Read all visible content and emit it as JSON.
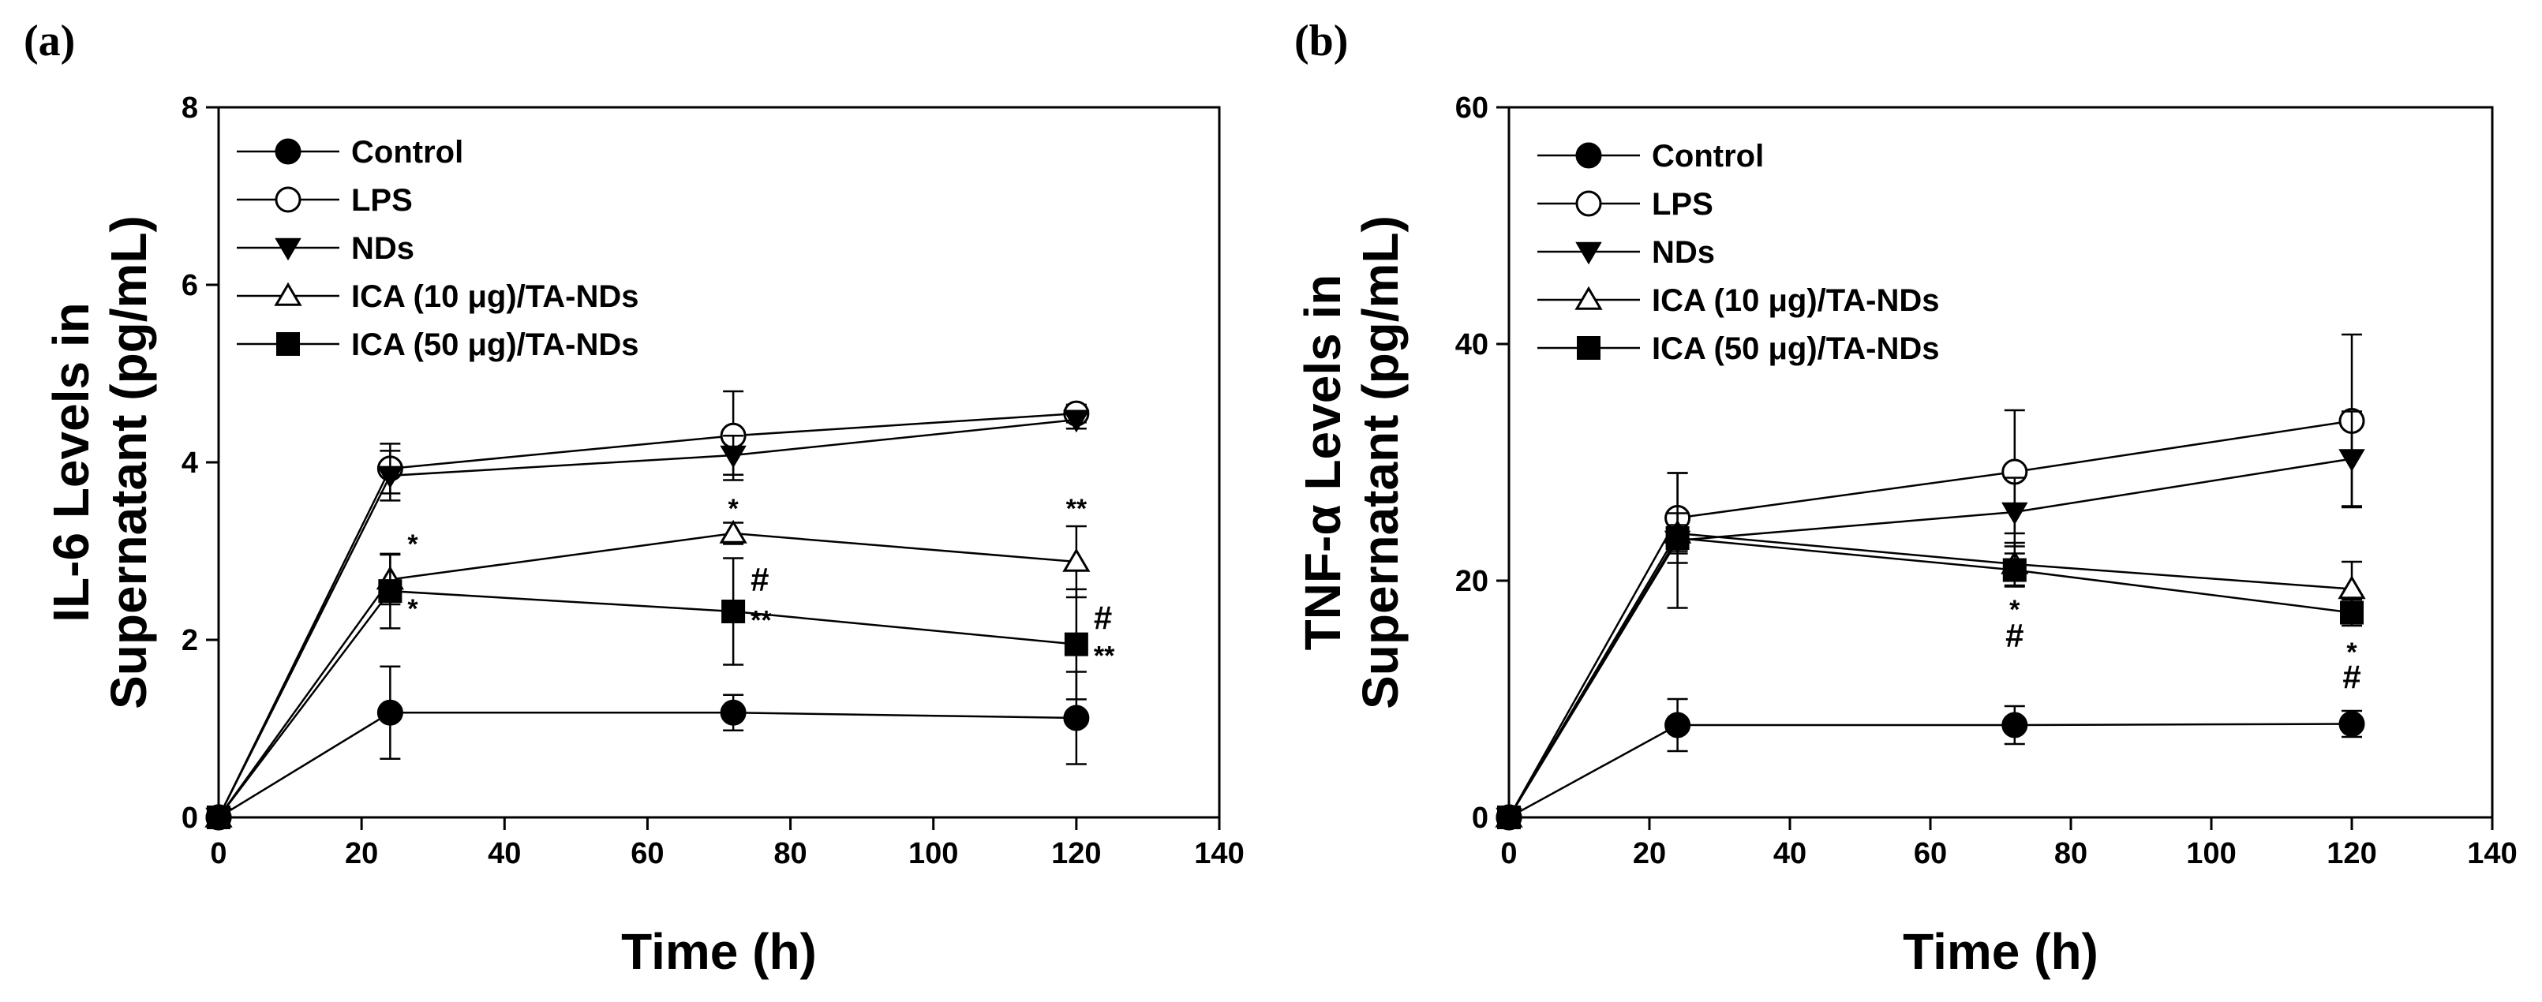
{
  "chart_data": [
    {
      "type": "line",
      "panel_label": "(a)",
      "xlabel": "Time (h)",
      "ylabel_line1": "IL-6 Levels in",
      "ylabel_line2": "Supernatant (pg/mL)",
      "xlim": [
        0,
        140
      ],
      "ylim": [
        0,
        8
      ],
      "xticks": [
        0,
        20,
        40,
        60,
        80,
        100,
        120,
        140
      ],
      "yticks": [
        0,
        2,
        4,
        6,
        8
      ],
      "legend_position": "top-left",
      "series": [
        {
          "name": "Control",
          "marker": "circle-filled",
          "x": [
            0,
            24,
            72,
            120
          ],
          "y": [
            0,
            1.18,
            1.18,
            1.12
          ],
          "err": [
            0,
            0.52,
            0.2,
            0.52
          ]
        },
        {
          "name": "LPS",
          "marker": "circle-open",
          "x": [
            0,
            24,
            72,
            120
          ],
          "y": [
            0,
            3.93,
            4.3,
            4.55
          ],
          "err": [
            0,
            0.28,
            0.5,
            0.1
          ]
        },
        {
          "name": "NDs",
          "marker": "triangle-down-filled",
          "x": [
            0,
            24,
            72,
            120
          ],
          "y": [
            0,
            3.85,
            4.08,
            4.48
          ],
          "err": [
            0,
            0.28,
            0.22,
            0.1
          ]
        },
        {
          "name": "ICA (10 μg)/TA-NDs",
          "marker": "triangle-up-open",
          "x": [
            0,
            24,
            72,
            120
          ],
          "y": [
            0,
            2.68,
            3.2,
            2.88
          ],
          "err": [
            0,
            0.28,
            0.12,
            0.4
          ]
        },
        {
          "name": "ICA (50 μg)/TA-NDs",
          "marker": "square-filled",
          "x": [
            0,
            24,
            72,
            120
          ],
          "y": [
            0,
            2.55,
            2.32,
            1.95
          ],
          "err": [
            0,
            0.42,
            0.6,
            0.62
          ]
        }
      ],
      "annotations": [
        {
          "text": "*",
          "x": 24,
          "y": 2.98,
          "anchor": "start"
        },
        {
          "text": "*",
          "x": 24,
          "y": 2.25,
          "anchor": "start"
        },
        {
          "text": "*",
          "x": 72,
          "y": 3.38,
          "anchor": "middle"
        },
        {
          "text": "#",
          "x": 72,
          "y": 2.55,
          "anchor": "start",
          "large": true
        },
        {
          "text": "**",
          "x": 72,
          "y": 2.12,
          "anchor": "start"
        },
        {
          "text": "**",
          "x": 120,
          "y": 3.38,
          "anchor": "middle"
        },
        {
          "text": "#",
          "x": 120,
          "y": 2.12,
          "anchor": "start",
          "large": true
        },
        {
          "text": "**",
          "x": 120,
          "y": 1.72,
          "anchor": "start"
        }
      ]
    },
    {
      "type": "line",
      "panel_label": "(b)",
      "xlabel": "Time (h)",
      "ylabel_line1": "TNF-α Levels in",
      "ylabel_line2": "Supernatant (pg/mL)",
      "xlim": [
        0,
        140
      ],
      "ylim": [
        0,
        60
      ],
      "xticks": [
        0,
        20,
        40,
        60,
        80,
        100,
        120,
        140
      ],
      "yticks": [
        0,
        20,
        40,
        60
      ],
      "legend_position": "top-left",
      "series": [
        {
          "name": "Control",
          "marker": "circle-filled",
          "x": [
            0,
            24,
            72,
            120
          ],
          "y": [
            0,
            7.8,
            7.8,
            7.9
          ],
          "err": [
            0,
            2.2,
            1.6,
            1.1
          ]
        },
        {
          "name": "LPS",
          "marker": "circle-open",
          "x": [
            0,
            24,
            72,
            120
          ],
          "y": [
            0,
            25.3,
            29.2,
            33.5
          ],
          "err": [
            0,
            3.8,
            5.2,
            7.3
          ]
        },
        {
          "name": "NDs",
          "marker": "triangle-down-filled",
          "x": [
            0,
            24,
            72,
            120
          ],
          "y": [
            0,
            23.4,
            25.8,
            30.3
          ],
          "err": [
            0,
            5.7,
            2.9,
            4.0
          ]
        },
        {
          "name": "ICA (10 μg)/TA-NDs",
          "marker": "triangle-up-open",
          "x": [
            0,
            24,
            72,
            120
          ],
          "y": [
            0,
            24.0,
            21.4,
            19.3
          ],
          "err": [
            0,
            1.7,
            1.8,
            2.3
          ]
        },
        {
          "name": "ICA (50 μg)/TA-NDs",
          "marker": "square-filled",
          "x": [
            0,
            24,
            72,
            120
          ],
          "y": [
            0,
            23.6,
            20.9,
            17.3
          ],
          "err": [
            0,
            1.1,
            1.4,
            1.1
          ]
        }
      ],
      "annotations": [
        {
          "text": "*",
          "x": 72,
          "y": 16.8,
          "anchor": "middle"
        },
        {
          "text": "#",
          "x": 72,
          "y": 14.4,
          "anchor": "middle",
          "large": true
        },
        {
          "text": "*",
          "x": 120,
          "y": 13.2,
          "anchor": "middle"
        },
        {
          "text": "#",
          "x": 120,
          "y": 10.9,
          "anchor": "middle",
          "large": true
        }
      ]
    }
  ]
}
